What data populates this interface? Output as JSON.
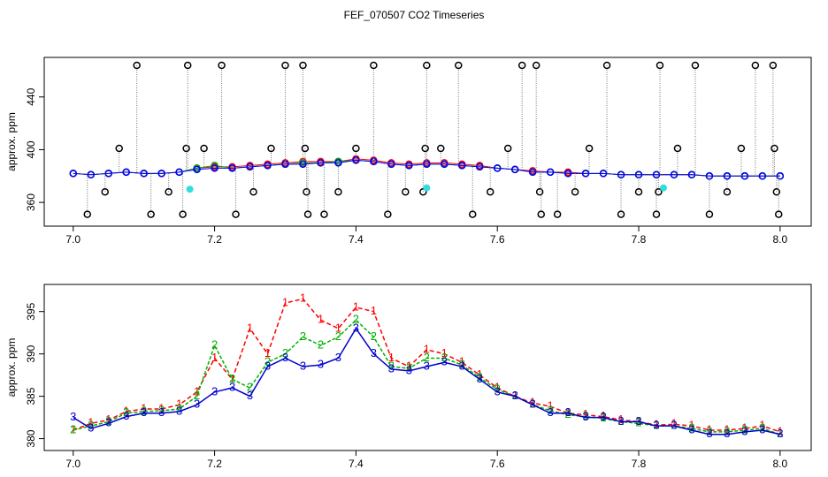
{
  "chart_data": [
    {
      "type": "scatter",
      "title": "FEF_070507  CO2 Timeseries",
      "ylabel": "approx. ppm",
      "xlim": [
        6.959,
        8.044
      ],
      "ylim": [
        342,
        470
      ],
      "xticks": [
        {
          "value": 7,
          "label": "7.0"
        },
        7.2,
        7.4,
        7.6,
        7.8,
        {
          "value": 8,
          "label": "8.0"
        }
      ],
      "yticks": [
        360,
        400,
        440
      ],
      "x": [
        7.0,
        7.025,
        7.05,
        7.075,
        7.1,
        7.125,
        7.15,
        7.175,
        7.2,
        7.225,
        7.25,
        7.275,
        7.3,
        7.325,
        7.35,
        7.375,
        7.4,
        7.425,
        7.45,
        7.475,
        7.5,
        7.525,
        7.55,
        7.575,
        7.6,
        7.625,
        7.65,
        7.675,
        7.7,
        7.725,
        7.75,
        7.775,
        7.8,
        7.825,
        7.85,
        7.875,
        7.9,
        7.925,
        7.95,
        7.975,
        8.0
      ],
      "series": [
        {
          "color": "#ff0000",
          "marker": "circle",
          "values": [
            382,
            381,
            382,
            383,
            382,
            382,
            383,
            386,
            387,
            387,
            388,
            389,
            390,
            391,
            391,
            391,
            393,
            392,
            390,
            389,
            390,
            390,
            389,
            388,
            386,
            385,
            384,
            383,
            383,
            382,
            382,
            381,
            381,
            381,
            381,
            381,
            380,
            380,
            380,
            380,
            380
          ]
        },
        {
          "color": "#00b000",
          "marker": "circle",
          "values": [
            382,
            381,
            382,
            383,
            382,
            382,
            383,
            386,
            388,
            386,
            387,
            388,
            389,
            390,
            390,
            391,
            392,
            391,
            389,
            388,
            389,
            389,
            388,
            387,
            386,
            385,
            383,
            383,
            382,
            382,
            382,
            381,
            381,
            381,
            381,
            381,
            380,
            380,
            380,
            380,
            380
          ]
        },
        {
          "color": "#0000ff",
          "marker": "circle",
          "values": [
            382,
            381,
            382,
            383,
            382,
            382,
            383,
            385,
            386,
            386,
            387,
            388,
            389,
            389,
            390,
            390,
            392,
            391,
            389,
            388,
            389,
            389,
            388,
            387,
            386,
            385,
            383,
            383,
            382,
            382,
            382,
            381,
            381,
            381,
            381,
            381,
            380,
            380,
            380,
            380,
            380
          ]
        },
        {
          "color": "#000000",
          "marker": "drop",
          "x": [
            7.02,
            7.045,
            7.065,
            7.09,
            7.11,
            7.135,
            7.155,
            7.16,
            7.162,
            7.185,
            7.21,
            7.23,
            7.255,
            7.28,
            7.3,
            7.325,
            7.328,
            7.33,
            7.332,
            7.355,
            7.375,
            7.4,
            7.425,
            7.445,
            7.47,
            7.495,
            7.498,
            7.5,
            7.52,
            7.545,
            7.565,
            7.59,
            7.615,
            7.635,
            7.655,
            7.66,
            7.662,
            7.685,
            7.71,
            7.73,
            7.755,
            7.775,
            7.8,
            7.825,
            7.828,
            7.83,
            7.855,
            7.88,
            7.9,
            7.925,
            7.945,
            7.965,
            7.99,
            7.992,
            7.995,
            7.998
          ],
          "values": [
            351,
            368,
            401,
            464,
            351,
            368,
            351,
            401,
            464,
            401,
            464,
            351,
            368,
            401,
            464,
            464,
            401,
            368,
            351,
            351,
            368,
            401,
            464,
            351,
            368,
            368,
            401,
            464,
            401,
            464,
            351,
            368,
            401,
            464,
            464,
            368,
            351,
            351,
            368,
            401,
            464,
            351,
            368,
            351,
            368,
            464,
            401,
            464,
            351,
            368,
            401,
            464,
            464,
            401,
            368,
            351
          ]
        },
        {
          "color": "#33dddd",
          "marker": "dot",
          "x": [
            7.165,
            7.5,
            7.835
          ],
          "values": [
            370,
            371,
            371
          ]
        }
      ]
    },
    {
      "type": "line",
      "ylabel": "approx. ppm",
      "xlim": [
        6.959,
        8.044
      ],
      "ylim": [
        378.6,
        398.2
      ],
      "xticks": [
        {
          "value": 7,
          "label": "7.0"
        },
        7.2,
        7.4,
        7.6,
        7.8,
        {
          "value": 8,
          "label": "8.0"
        }
      ],
      "yticks": [
        380,
        385,
        390,
        395
      ],
      "x": [
        7.0,
        7.025,
        7.05,
        7.075,
        7.1,
        7.125,
        7.15,
        7.175,
        7.2,
        7.225,
        7.25,
        7.275,
        7.3,
        7.325,
        7.35,
        7.375,
        7.4,
        7.425,
        7.45,
        7.475,
        7.5,
        7.525,
        7.55,
        7.575,
        7.6,
        7.625,
        7.65,
        7.675,
        7.7,
        7.725,
        7.75,
        7.775,
        7.8,
        7.825,
        7.85,
        7.875,
        7.9,
        7.925,
        7.95,
        7.975,
        8.0
      ],
      "series": [
        {
          "name": "1",
          "color": "#ff0000",
          "values": [
            381,
            381.8,
            382.2,
            383.2,
            383.5,
            383.5,
            384,
            385.5,
            389.5,
            387,
            393,
            390,
            396,
            396.5,
            394,
            393,
            395.5,
            395,
            389.5,
            388.5,
            390.5,
            390,
            389,
            387.5,
            386,
            385,
            384.2,
            383.8,
            383,
            382.8,
            382.6,
            382.2,
            382,
            381.6,
            381.7,
            381.5,
            381,
            381,
            381.2,
            381.5,
            380.8
          ]
        },
        {
          "name": "2",
          "color": "#00b000",
          "values": [
            381,
            381.5,
            382,
            383,
            383.2,
            383.3,
            383.5,
            385,
            391,
            387,
            386,
            389,
            390,
            392,
            391,
            392,
            394,
            392,
            388.5,
            388.3,
            389.5,
            389.5,
            388.7,
            387.2,
            385.8,
            385,
            384,
            383.3,
            382.8,
            382.6,
            382.4,
            382,
            381.8,
            381.5,
            381.5,
            381.2,
            380.8,
            380.8,
            381,
            381.2,
            380.5
          ]
        },
        {
          "name": "3",
          "color": "#0000cc",
          "values": [
            382.5,
            381.2,
            381.8,
            382.6,
            383,
            383,
            383.2,
            384,
            385.5,
            386,
            385,
            388.5,
            389.5,
            388.5,
            388.7,
            389.5,
            393,
            390,
            388.2,
            388,
            388.5,
            389,
            388.5,
            387,
            385.5,
            385,
            384,
            383,
            383,
            382.5,
            382.5,
            382,
            382,
            381.5,
            381.5,
            381,
            380.5,
            380.5,
            380.8,
            381,
            380.5
          ]
        }
      ]
    }
  ]
}
